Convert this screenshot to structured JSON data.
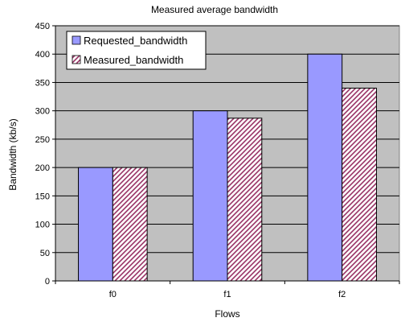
{
  "chart_data": {
    "type": "bar",
    "title": "Measured average bandwidth",
    "xlabel": "Flows",
    "ylabel": "Bandwidth (kb/s)",
    "categories": [
      "f0",
      "f1",
      "f2"
    ],
    "ylim": [
      0,
      450
    ],
    "yticks": [
      0,
      50,
      100,
      150,
      200,
      250,
      300,
      350,
      400,
      450
    ],
    "grid": true,
    "legend_position": "top-left",
    "series": [
      {
        "name": "Requested_bandwidth",
        "values": [
          200,
          300,
          400
        ],
        "color": "#9999ff",
        "pattern": "solid"
      },
      {
        "name": "Measured_bandwidth",
        "values": [
          200,
          287,
          340
        ],
        "color": "#993366",
        "pattern": "diagonal-hatch"
      }
    ],
    "plot_background": "#c0c0c0"
  }
}
